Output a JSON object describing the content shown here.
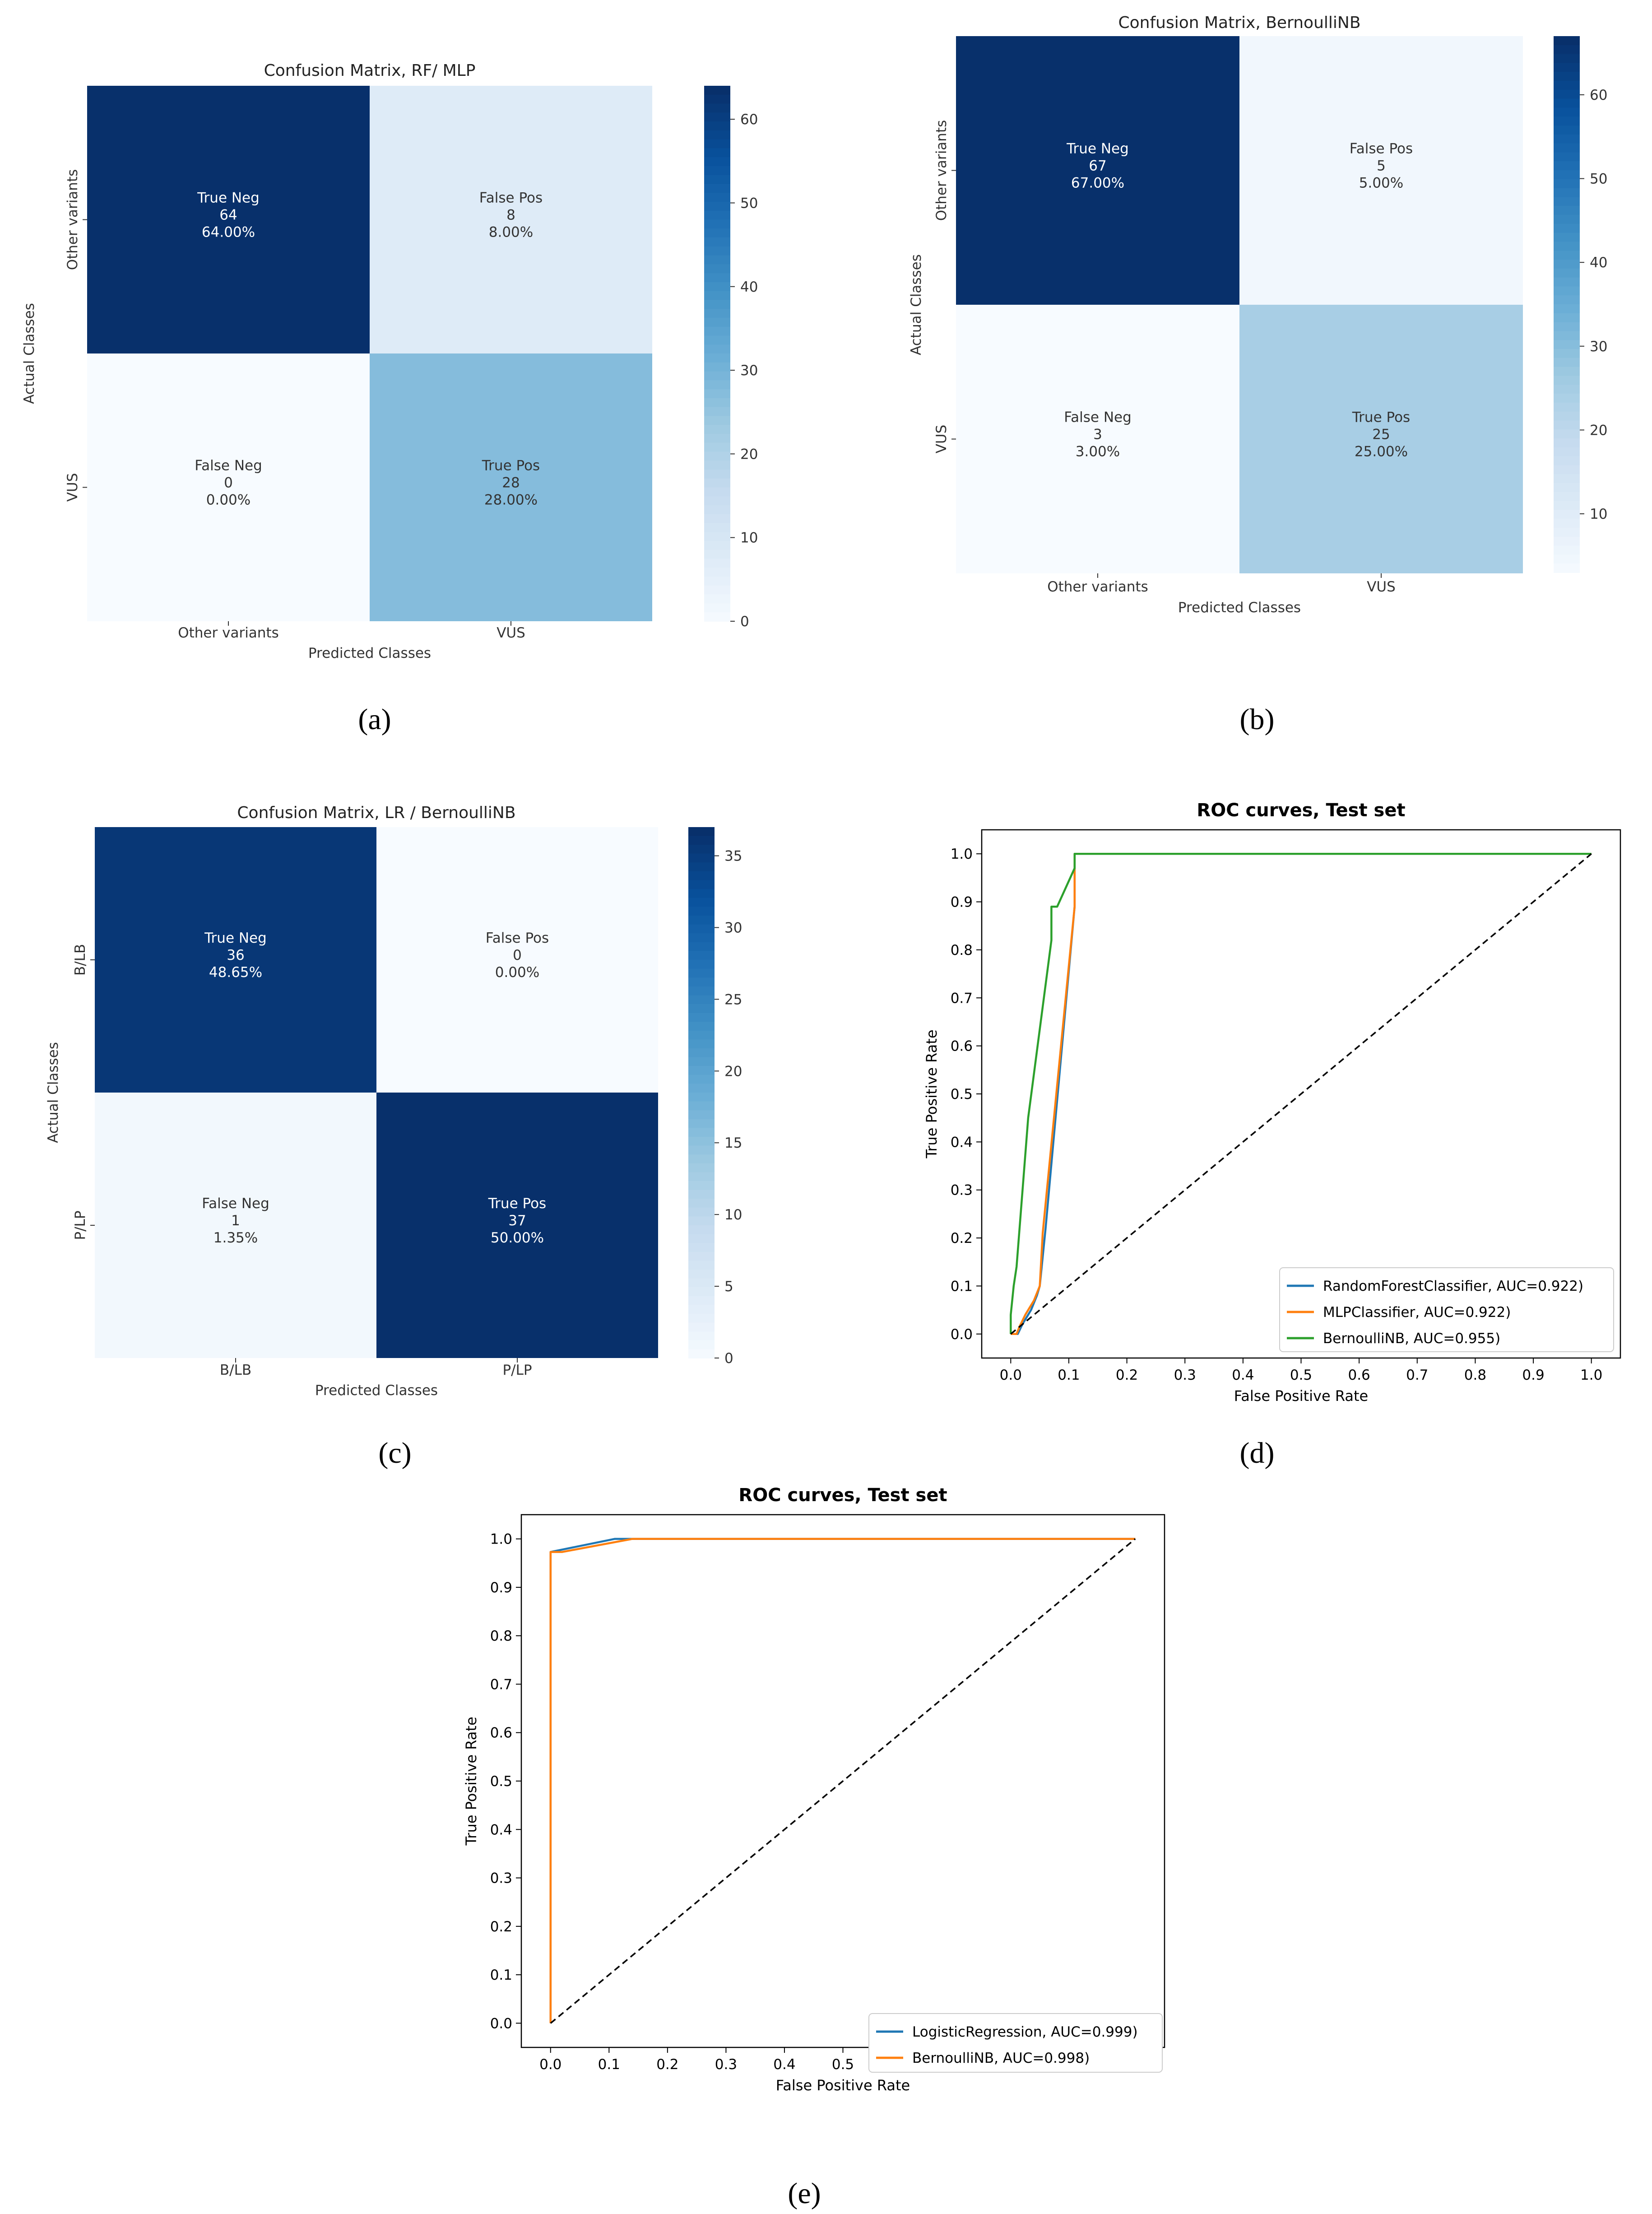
{
  "colors": {
    "cmap_light": "#f7fbff",
    "cmap_dark": "#08306b",
    "roc_blue": "#1f77b4",
    "roc_orange": "#ff7f0e",
    "roc_green": "#2ca02c",
    "diagonal": "#000000"
  },
  "chart_data": [
    {
      "type": "heatmap",
      "panel": "(a)",
      "title": "Confusion Matrix, RF/ MLP",
      "xlabel": "Predicted Classes",
      "ylabel": "Actual Classes",
      "x_categories": [
        "Other variants",
        "VUS"
      ],
      "y_categories": [
        "Other variants",
        "VUS"
      ],
      "cells": [
        [
          {
            "name": "True Neg",
            "count": 64,
            "pct": "64.00%"
          },
          {
            "name": "False Pos",
            "count": 8,
            "pct": "8.00%"
          }
        ],
        [
          {
            "name": "False Neg",
            "count": 0,
            "pct": "0.00%"
          },
          {
            "name": "True Pos",
            "count": 28,
            "pct": "28.00%"
          }
        ]
      ],
      "colorbar": {
        "min": 0,
        "max": 64,
        "ticks": [
          0,
          10,
          20,
          30,
          40,
          50,
          60
        ]
      }
    },
    {
      "type": "heatmap",
      "panel": "(b)",
      "title": "Confusion Matrix, BernoulliNB",
      "xlabel": "Predicted Classes",
      "ylabel": "Actual Classes",
      "x_categories": [
        "Other variants",
        "VUS"
      ],
      "y_categories": [
        "Other variants",
        "VUS"
      ],
      "cells": [
        [
          {
            "name": "True Neg",
            "count": 67,
            "pct": "67.00%"
          },
          {
            "name": "False Pos",
            "count": 5,
            "pct": "5.00%"
          }
        ],
        [
          {
            "name": "False Neg",
            "count": 3,
            "pct": "3.00%"
          },
          {
            "name": "True Pos",
            "count": 25,
            "pct": "25.00%"
          }
        ]
      ],
      "colorbar": {
        "min": 3,
        "max": 67,
        "ticks": [
          10,
          20,
          30,
          40,
          50,
          60
        ]
      }
    },
    {
      "type": "heatmap",
      "panel": "(c)",
      "title": "Confusion Matrix, LR / BernoulliNB",
      "xlabel": "Predicted Classes",
      "ylabel": "Actual Classes",
      "x_categories": [
        "B/LB",
        "P/LP"
      ],
      "y_categories": [
        "B/LB",
        "P/LP"
      ],
      "cells": [
        [
          {
            "name": "True Neg",
            "count": 36,
            "pct": "48.65%"
          },
          {
            "name": "False Pos",
            "count": 0,
            "pct": "0.00%"
          }
        ],
        [
          {
            "name": "False Neg",
            "count": 1,
            "pct": "1.35%"
          },
          {
            "name": "True Pos",
            "count": 37,
            "pct": "50.00%"
          }
        ]
      ],
      "colorbar": {
        "min": 0,
        "max": 37,
        "ticks": [
          0,
          5,
          10,
          15,
          20,
          25,
          30,
          35
        ]
      }
    },
    {
      "type": "line",
      "panel": "(d)",
      "title": "ROC curves, Test set",
      "xlabel": "False Positive Rate",
      "ylabel": "True Positive Rate",
      "xlim": [
        0,
        1
      ],
      "ylim": [
        0,
        1
      ],
      "ticks": [
        0.0,
        0.1,
        0.2,
        0.3,
        0.4,
        0.5,
        0.6,
        0.7,
        0.8,
        0.9,
        1.0
      ],
      "legend_position": "lower-right",
      "series": [
        {
          "name": "RandomForestClassifier, AUC=0.922)",
          "color": "#1f77b4",
          "x": [
            0,
            0.012,
            0.02,
            0.035,
            0.045,
            0.05,
            0.06,
            0.11,
            0.11,
            1.0
          ],
          "y": [
            0,
            0,
            0.02,
            0.05,
            0.08,
            0.1,
            0.22,
            0.89,
            1.0,
            1.0
          ]
        },
        {
          "name": "MLPClassifier, AUC=0.922)",
          "color": "#ff7f0e",
          "x": [
            0,
            0.01,
            0.015,
            0.025,
            0.04,
            0.05,
            0.055,
            0.11,
            0.11,
            1.0
          ],
          "y": [
            0,
            0,
            0.015,
            0.04,
            0.07,
            0.1,
            0.21,
            0.89,
            1.0,
            1.0
          ]
        },
        {
          "name": "BernoulliNB, AUC=0.955)",
          "color": "#2ca02c",
          "x": [
            0,
            0.0,
            0.005,
            0.01,
            0.03,
            0.07,
            0.07,
            0.08,
            0.11,
            0.11,
            1.0
          ],
          "y": [
            0,
            0.04,
            0.1,
            0.14,
            0.45,
            0.82,
            0.89,
            0.89,
            0.97,
            1.0,
            1.0
          ]
        },
        {
          "name": "",
          "color": "#000000",
          "dashed": true,
          "x": [
            0,
            1
          ],
          "y": [
            0,
            1
          ]
        }
      ]
    },
    {
      "type": "line",
      "panel": "(e)",
      "title": "ROC curves, Test set",
      "xlabel": "False Positive Rate",
      "ylabel": "True Positive Rate",
      "xlim": [
        0,
        1
      ],
      "ylim": [
        0,
        1
      ],
      "ticks": [
        0.0,
        0.1,
        0.2,
        0.3,
        0.4,
        0.5,
        0.6,
        0.7,
        0.8,
        0.9,
        1.0
      ],
      "legend_position": "lower-right",
      "series": [
        {
          "name": "LogisticRegression, AUC=0.999)",
          "color": "#1f77b4",
          "x": [
            0,
            0,
            0.11,
            0.13,
            1.0
          ],
          "y": [
            0,
            0.973,
            1.0,
            1.0,
            1.0
          ]
        },
        {
          "name": "BernoulliNB, AUC=0.998)",
          "color": "#ff7f0e",
          "x": [
            0,
            0,
            0.02,
            0.14,
            1.0
          ],
          "y": [
            0,
            0.973,
            0.973,
            1.0,
            1.0
          ]
        },
        {
          "name": "",
          "color": "#000000",
          "dashed": true,
          "x": [
            0,
            1
          ],
          "y": [
            0,
            1
          ]
        }
      ]
    }
  ]
}
